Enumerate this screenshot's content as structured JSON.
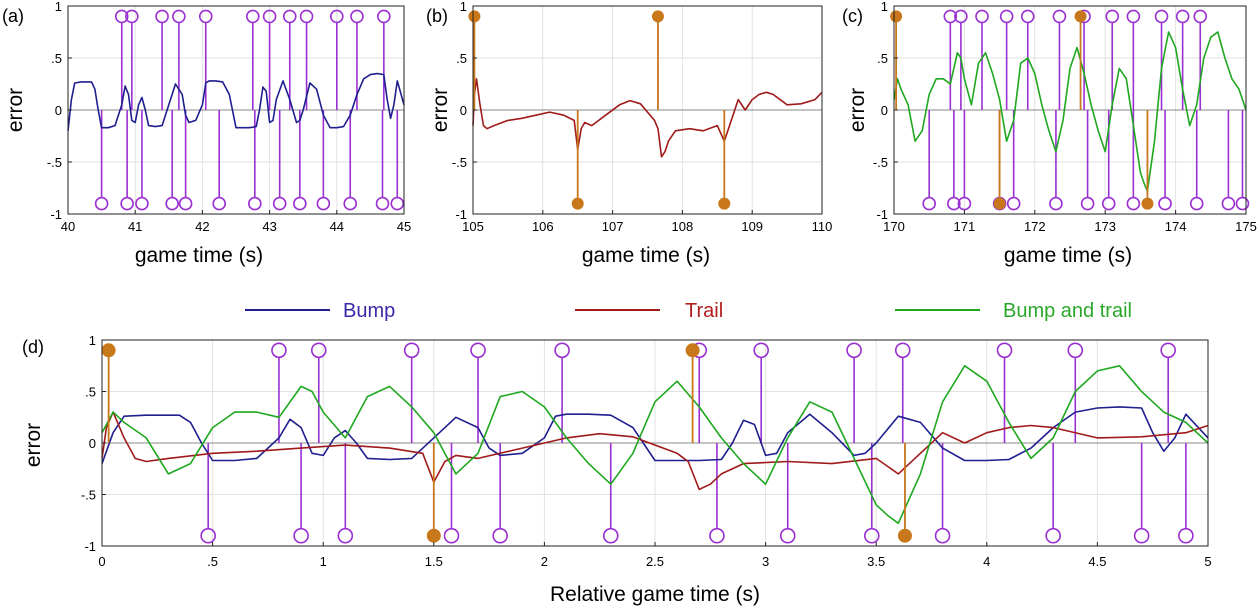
{
  "colors": {
    "bump": "#1f1f8f",
    "trail": "#a01a1a",
    "bump_and_trail": "#1fa81f",
    "stem_purple": "#9a2fd2",
    "stem_orange": "#c8771a",
    "grid": "#e2e2e2",
    "zero_line": "#888888",
    "legend_bump_text": "#3a2aa8",
    "legend_trail_text": "#b21e1e",
    "legend_bt_text": "#2aa82a"
  },
  "legend": {
    "bump": "Bump",
    "trail": "Trail",
    "bump_and_trail": "Bump and trail"
  },
  "chart_data": [
    {
      "panel_label": "(a)",
      "type": "line",
      "xlabel": "game time (s)",
      "ylabel": "error",
      "xlim": [
        40,
        45
      ],
      "ylim": [
        -1,
        1
      ],
      "xticks": [
        40,
        41,
        42,
        43,
        44,
        45
      ],
      "yticks": [
        -1,
        -0.5,
        0,
        0.5,
        1
      ],
      "series": [
        {
          "name": "Bump",
          "color_key": "bump",
          "x": [
            40,
            40.05,
            40.1,
            40.2,
            40.3,
            40.35,
            40.4,
            40.45,
            40.5,
            40.6,
            40.7,
            40.8,
            40.85,
            40.9,
            40.95,
            41,
            41.05,
            41.1,
            41.15,
            41.2,
            41.3,
            41.4,
            41.5,
            41.6,
            41.7,
            41.75,
            41.8,
            41.9,
            42,
            42.05,
            42.1,
            42.2,
            42.3,
            42.4,
            42.5,
            42.6,
            42.7,
            42.8,
            42.85,
            42.9,
            42.95,
            43,
            43.05,
            43.1,
            43.2,
            43.3,
            43.4,
            43.45,
            43.5,
            43.6,
            43.7,
            43.8,
            43.9,
            44,
            44.1,
            44.2,
            44.3,
            44.4,
            44.5,
            44.6,
            44.7,
            44.75,
            44.8,
            44.85,
            44.9,
            45
          ],
          "values": [
            -0.2,
            0.1,
            0.26,
            0.27,
            0.27,
            0.27,
            0.2,
            0,
            -0.17,
            -0.17,
            -0.15,
            0.05,
            0.23,
            0.15,
            -0.1,
            -0.12,
            0.05,
            0.12,
            0,
            -0.15,
            -0.16,
            -0.15,
            0.05,
            0.25,
            0.15,
            -0.05,
            -0.12,
            -0.1,
            0.05,
            0.26,
            0.28,
            0.28,
            0.27,
            0.15,
            -0.17,
            -0.17,
            -0.17,
            -0.16,
            0,
            0.22,
            0.18,
            -0.12,
            -0.1,
            0.1,
            0.28,
            0.1,
            -0.12,
            -0.1,
            0,
            0.26,
            0.2,
            -0.05,
            -0.17,
            -0.17,
            -0.16,
            -0.05,
            0.15,
            0.3,
            0.34,
            0.35,
            0.34,
            0.1,
            -0.08,
            0.05,
            0.28,
            0.05
          ]
        }
      ],
      "stems_purple_top": [
        40.8,
        40.95,
        41.4,
        41.65,
        42.05,
        42.75,
        43,
        43.3,
        43.55,
        44,
        44.3,
        44.7
      ],
      "stems_purple_bottom": [
        40.5,
        40.88,
        41.1,
        41.55,
        41.75,
        42.25,
        42.78,
        43.15,
        43.45,
        43.8,
        44.2,
        44.68,
        44.9
      ],
      "stems_orange_top": [],
      "stems_orange_bottom": []
    },
    {
      "panel_label": "(b)",
      "type": "line",
      "xlabel": "game time (s)",
      "ylabel": "error",
      "xlim": [
        105,
        110
      ],
      "ylim": [
        -1,
        1
      ],
      "xticks": [
        105,
        106,
        107,
        108,
        109,
        110
      ],
      "yticks": [
        -1,
        -0.5,
        0,
        0.5,
        1
      ],
      "series": [
        {
          "name": "Trail",
          "color_key": "trail",
          "x": [
            105,
            105.02,
            105.05,
            105.1,
            105.15,
            105.2,
            105.3,
            105.5,
            105.7,
            105.9,
            106.1,
            106.3,
            106.45,
            106.5,
            106.55,
            106.6,
            106.7,
            106.9,
            107.1,
            107.25,
            107.4,
            107.6,
            107.65,
            107.7,
            107.75,
            107.8,
            107.9,
            108.1,
            108.3,
            108.5,
            108.6,
            108.65,
            108.7,
            108.8,
            108.9,
            109,
            109.1,
            109.2,
            109.3,
            109.5,
            109.7,
            109.9,
            110
          ],
          "values": [
            -0.15,
            0.15,
            0.3,
            0.05,
            -0.15,
            -0.18,
            -0.15,
            -0.1,
            -0.08,
            -0.05,
            -0.02,
            -0.05,
            -0.1,
            -0.38,
            -0.18,
            -0.12,
            -0.15,
            -0.05,
            0.05,
            0.09,
            0.06,
            -0.1,
            -0.18,
            -0.45,
            -0.4,
            -0.3,
            -0.2,
            -0.18,
            -0.2,
            -0.15,
            -0.3,
            -0.2,
            -0.1,
            0.1,
            0,
            0.1,
            0.15,
            0.17,
            0.15,
            0.05,
            0.06,
            0.1,
            0.17
          ]
        }
      ],
      "stems_purple_top": [],
      "stems_purple_bottom": [],
      "stems_orange_top": [
        105.02,
        107.65
      ],
      "stems_orange_bottom": [
        106.5,
        108.6
      ]
    },
    {
      "panel_label": "(c)",
      "type": "line",
      "xlabel": "game time (s)",
      "ylabel": "error",
      "xlim": [
        170,
        175
      ],
      "ylim": [
        -1,
        1
      ],
      "xticks": [
        170,
        171,
        172,
        173,
        174,
        175
      ],
      "yticks": [
        -1,
        -0.5,
        0,
        0.5,
        1
      ],
      "series": [
        {
          "name": "Bump and trail",
          "color_key": "bump_and_trail",
          "x": [
            170,
            170.05,
            170.1,
            170.2,
            170.3,
            170.4,
            170.5,
            170.6,
            170.7,
            170.8,
            170.9,
            170.95,
            171,
            171.1,
            171.2,
            171.3,
            171.4,
            171.5,
            171.6,
            171.7,
            171.8,
            171.9,
            172,
            172.1,
            172.2,
            172.3,
            172.4,
            172.5,
            172.6,
            172.7,
            172.8,
            172.9,
            173,
            173.1,
            173.2,
            173.3,
            173.4,
            173.5,
            173.55,
            173.6,
            173.7,
            173.8,
            173.9,
            174,
            174.1,
            174.2,
            174.3,
            174.4,
            174.5,
            174.6,
            174.7,
            174.8,
            174.9,
            175
          ],
          "values": [
            0.1,
            0.3,
            0.2,
            0.05,
            -0.3,
            -0.2,
            0.15,
            0.3,
            0.3,
            0.25,
            0.55,
            0.5,
            0.3,
            0.05,
            0.45,
            0.55,
            0.35,
            0.1,
            -0.3,
            -0.1,
            0.45,
            0.5,
            0.35,
            0.05,
            -0.2,
            -0.4,
            -0.1,
            0.4,
            0.6,
            0.35,
            0.05,
            -0.2,
            -0.4,
            0.05,
            0.4,
            0.3,
            -0.15,
            -0.6,
            -0.7,
            -0.78,
            -0.3,
            0.4,
            0.75,
            0.6,
            0.2,
            -0.15,
            0.05,
            0.5,
            0.7,
            0.75,
            0.5,
            0.3,
            0.2,
            0
          ]
        }
      ],
      "stems_purple_top": [
        170.8,
        170.95,
        171.25,
        171.6,
        171.9,
        172.35,
        172.7,
        173.1,
        173.4,
        173.8,
        174.1,
        174.35
      ],
      "stems_purple_bottom": [
        170.5,
        170.85,
        171,
        171.5,
        171.7,
        172.3,
        172.75,
        173.05,
        173.4,
        173.85,
        174.3,
        174.75,
        174.95
      ],
      "stems_orange_top": [
        170.03,
        172.65
      ],
      "stems_orange_bottom": [
        171.5,
        173.6
      ]
    },
    {
      "panel_label": "(d)",
      "type": "line",
      "xlabel": "Relative game time (s)",
      "ylabel": "error",
      "xlim": [
        0,
        5
      ],
      "ylim": [
        -1,
        1
      ],
      "xticks": [
        0,
        0.5,
        1,
        1.5,
        2,
        2.5,
        3,
        3.5,
        4,
        4.5,
        5
      ],
      "yticks": [
        -1,
        -0.5,
        0,
        0.5,
        1
      ],
      "series": [
        {
          "name": "Bump",
          "color_key": "bump",
          "x": [
            0,
            0.05,
            0.1,
            0.2,
            0.3,
            0.35,
            0.4,
            0.45,
            0.5,
            0.6,
            0.7,
            0.8,
            0.85,
            0.9,
            0.95,
            1,
            1.05,
            1.1,
            1.15,
            1.2,
            1.3,
            1.4,
            1.5,
            1.6,
            1.7,
            1.75,
            1.8,
            1.9,
            2,
            2.05,
            2.1,
            2.2,
            2.3,
            2.4,
            2.5,
            2.6,
            2.7,
            2.8,
            2.85,
            2.9,
            2.95,
            3,
            3.05,
            3.1,
            3.2,
            3.3,
            3.4,
            3.45,
            3.5,
            3.6,
            3.7,
            3.8,
            3.9,
            4,
            4.1,
            4.2,
            4.3,
            4.4,
            4.5,
            4.6,
            4.7,
            4.75,
            4.8,
            4.85,
            4.9,
            5
          ],
          "values": [
            -0.2,
            0.1,
            0.26,
            0.27,
            0.27,
            0.27,
            0.2,
            0,
            -0.17,
            -0.17,
            -0.15,
            0.05,
            0.23,
            0.15,
            -0.1,
            -0.12,
            0.05,
            0.12,
            0,
            -0.15,
            -0.16,
            -0.15,
            0.05,
            0.25,
            0.15,
            -0.05,
            -0.12,
            -0.1,
            0.05,
            0.26,
            0.28,
            0.28,
            0.27,
            0.15,
            -0.17,
            -0.17,
            -0.17,
            -0.16,
            0,
            0.22,
            0.18,
            -0.12,
            -0.1,
            0.1,
            0.28,
            0.1,
            -0.12,
            -0.1,
            0,
            0.26,
            0.2,
            -0.05,
            -0.17,
            -0.17,
            -0.16,
            -0.05,
            0.15,
            0.3,
            0.34,
            0.35,
            0.34,
            0.1,
            -0.08,
            0.05,
            0.28,
            0.05
          ]
        },
        {
          "name": "Trail",
          "color_key": "trail",
          "x": [
            0,
            0.02,
            0.05,
            0.1,
            0.15,
            0.2,
            0.3,
            0.5,
            0.7,
            0.9,
            1.1,
            1.3,
            1.45,
            1.5,
            1.55,
            1.6,
            1.7,
            1.9,
            2.1,
            2.25,
            2.4,
            2.6,
            2.65,
            2.7,
            2.75,
            2.8,
            2.9,
            3.1,
            3.3,
            3.5,
            3.6,
            3.65,
            3.7,
            3.8,
            3.9,
            4,
            4.1,
            4.2,
            4.3,
            4.5,
            4.7,
            4.9,
            5
          ],
          "values": [
            -0.15,
            0.15,
            0.3,
            0.05,
            -0.15,
            -0.18,
            -0.15,
            -0.1,
            -0.08,
            -0.05,
            -0.02,
            -0.05,
            -0.1,
            -0.38,
            -0.18,
            -0.12,
            -0.15,
            -0.05,
            0.05,
            0.09,
            0.06,
            -0.1,
            -0.18,
            -0.45,
            -0.4,
            -0.3,
            -0.2,
            -0.18,
            -0.2,
            -0.15,
            -0.3,
            -0.2,
            -0.1,
            0.1,
            0,
            0.1,
            0.15,
            0.17,
            0.15,
            0.05,
            0.06,
            0.1,
            0.17
          ]
        },
        {
          "name": "Bump and trail",
          "color_key": "bump_and_trail",
          "x": [
            0,
            0.05,
            0.1,
            0.2,
            0.3,
            0.4,
            0.5,
            0.6,
            0.7,
            0.8,
            0.9,
            0.95,
            1,
            1.1,
            1.2,
            1.3,
            1.4,
            1.5,
            1.6,
            1.7,
            1.8,
            1.9,
            2,
            2.1,
            2.2,
            2.3,
            2.4,
            2.5,
            2.6,
            2.7,
            2.8,
            2.9,
            3,
            3.1,
            3.2,
            3.3,
            3.4,
            3.5,
            3.55,
            3.6,
            3.7,
            3.8,
            3.9,
            4,
            4.1,
            4.2,
            4.3,
            4.4,
            4.5,
            4.6,
            4.7,
            4.8,
            4.9,
            5
          ],
          "values": [
            0.1,
            0.3,
            0.2,
            0.05,
            -0.3,
            -0.2,
            0.15,
            0.3,
            0.3,
            0.25,
            0.55,
            0.5,
            0.3,
            0.05,
            0.45,
            0.55,
            0.35,
            0.1,
            -0.3,
            -0.1,
            0.45,
            0.5,
            0.35,
            0.05,
            -0.2,
            -0.4,
            -0.1,
            0.4,
            0.6,
            0.35,
            0.05,
            -0.2,
            -0.4,
            0.05,
            0.4,
            0.3,
            -0.15,
            -0.6,
            -0.7,
            -0.78,
            -0.3,
            0.4,
            0.75,
            0.6,
            0.2,
            -0.15,
            0.05,
            0.5,
            0.7,
            0.75,
            0.5,
            0.3,
            0.2,
            0
          ]
        }
      ],
      "stems_purple_top": [
        0.8,
        0.98,
        1.4,
        1.7,
        2.08,
        2.7,
        2.98,
        3.4,
        3.62,
        4.08,
        4.4,
        4.82
      ],
      "stems_purple_bottom": [
        0.48,
        0.9,
        1.1,
        1.58,
        1.8,
        2.3,
        2.78,
        3.1,
        3.48,
        3.8,
        4.3,
        4.7,
        4.9
      ],
      "stems_orange_top": [
        0.03,
        2.67
      ],
      "stems_orange_bottom": [
        1.5,
        3.63
      ]
    }
  ]
}
